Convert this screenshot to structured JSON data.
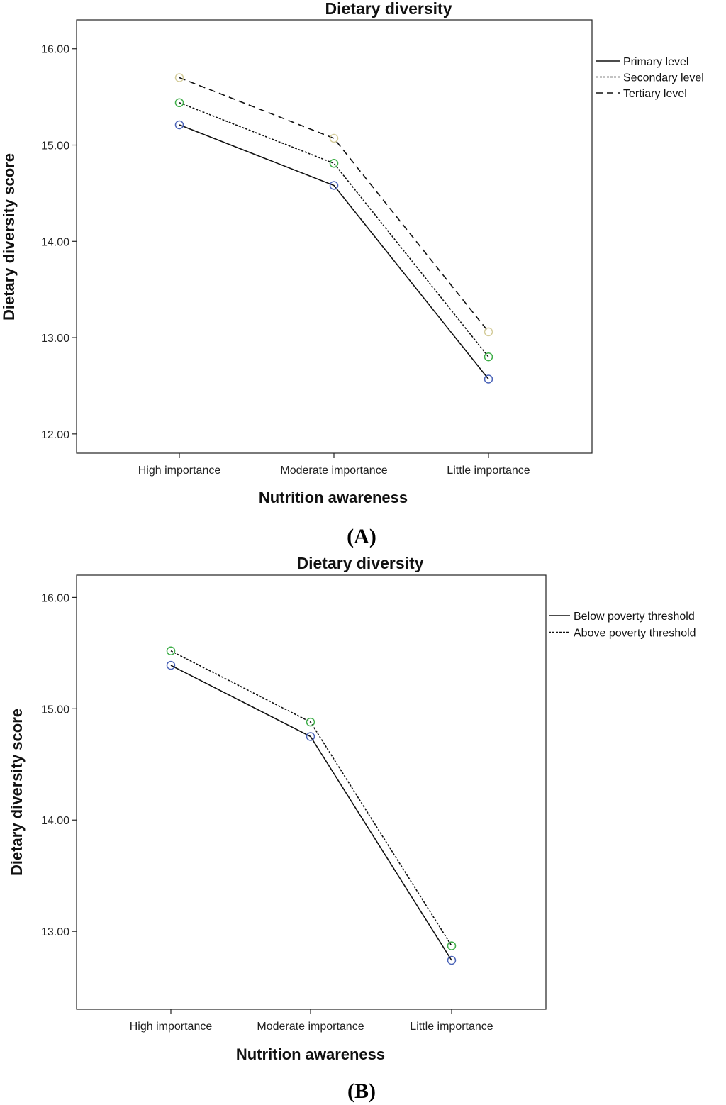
{
  "chart_data": [
    {
      "panel_label": "(A)",
      "type": "line",
      "title": "Dietary diversity",
      "xlabel": "Nutrition awareness",
      "ylabel": "Dietary diversity score",
      "categories": [
        "High importance",
        "Moderate importance",
        "Little importance"
      ],
      "ylim": [
        11.8,
        16.3
      ],
      "yticks": [
        "16.00",
        "15.00",
        "14.00",
        "13.00",
        "12.00"
      ],
      "ytick_values": [
        16,
        15,
        14,
        13,
        12
      ],
      "legend_position": "top-right, outside plot",
      "series": [
        {
          "name": "Primary level",
          "style": "solid",
          "marker_color": "#4a63b8",
          "values": [
            15.21,
            14.58,
            12.57
          ]
        },
        {
          "name": "Secondary level",
          "style": "dotted",
          "marker_color": "#3fae49",
          "values": [
            15.44,
            14.81,
            12.8
          ]
        },
        {
          "name": "Tertiary level",
          "style": "dashed",
          "marker_color": "#d4cc9a",
          "values": [
            15.7,
            15.07,
            13.06
          ]
        }
      ]
    },
    {
      "panel_label": "(B)",
      "type": "line",
      "title": "Dietary diversity",
      "xlabel": "Nutrition awareness",
      "ylabel": "Dietary diversity score",
      "categories": [
        "High importance",
        "Moderate importance",
        "Little importance"
      ],
      "ylim": [
        12.3,
        16.2
      ],
      "yticks": [
        "16.00",
        "15.00",
        "14.00",
        "13.00"
      ],
      "ytick_values": [
        16,
        15,
        14,
        13
      ],
      "legend_position": "top-right, outside plot",
      "series": [
        {
          "name": "Below poverty threshold",
          "style": "solid",
          "marker_color": "#4a63b8",
          "values": [
            15.39,
            14.75,
            12.74
          ]
        },
        {
          "name": "Above poverty threshold",
          "style": "dotted",
          "marker_color": "#3fae49",
          "values": [
            15.52,
            14.88,
            12.87
          ]
        }
      ]
    }
  ]
}
